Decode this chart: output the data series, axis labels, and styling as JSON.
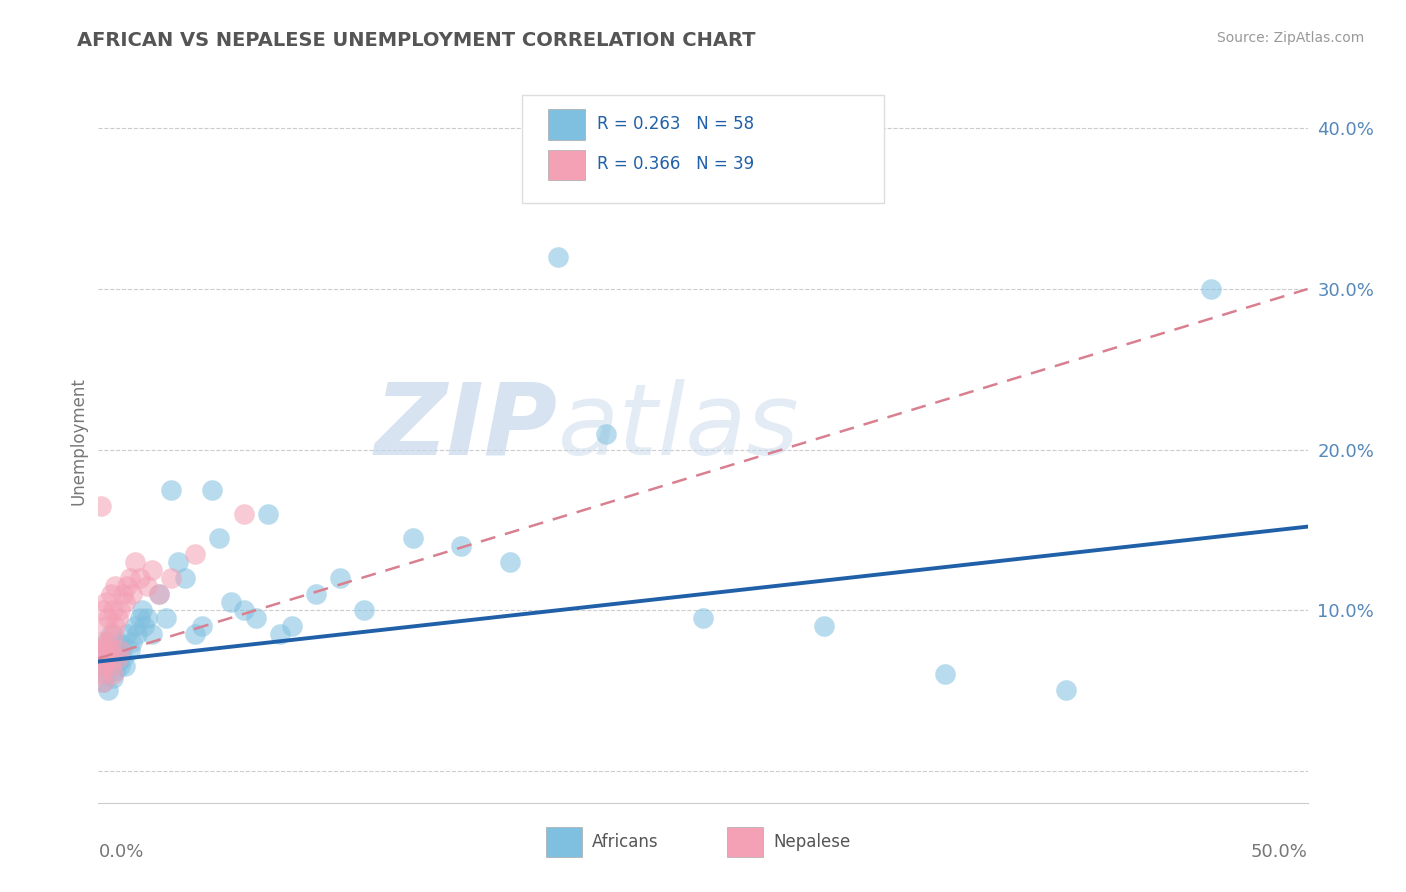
{
  "title": "AFRICAN VS NEPALESE UNEMPLOYMENT CORRELATION CHART",
  "source": "Source: ZipAtlas.com",
  "ylabel": "Unemployment",
  "xlim": [
    0,
    0.5
  ],
  "ylim": [
    -0.02,
    0.43
  ],
  "yticks": [
    0.0,
    0.1,
    0.2,
    0.3,
    0.4
  ],
  "ytick_labels": [
    "",
    "10.0%",
    "20.0%",
    "30.0%",
    "40.0%"
  ],
  "legend_label1": "Africans",
  "legend_label2": "Nepalese",
  "blue_color": "#7fbfdf",
  "pink_color": "#f4a0b5",
  "blue_line_color": "#2060a8",
  "pink_line_color": "#d88090",
  "watermark_zip": "ZIP",
  "watermark_atlas": "atlas",
  "africans_x": [
    0.001,
    0.002,
    0.002,
    0.003,
    0.003,
    0.004,
    0.004,
    0.005,
    0.005,
    0.006,
    0.006,
    0.007,
    0.007,
    0.008,
    0.008,
    0.009,
    0.009,
    0.01,
    0.01,
    0.011,
    0.012,
    0.013,
    0.014,
    0.015,
    0.016,
    0.017,
    0.018,
    0.019,
    0.02,
    0.022,
    0.025,
    0.028,
    0.03,
    0.033,
    0.036,
    0.04,
    0.043,
    0.047,
    0.05,
    0.055,
    0.06,
    0.065,
    0.07,
    0.075,
    0.08,
    0.09,
    0.1,
    0.11,
    0.13,
    0.15,
    0.17,
    0.19,
    0.21,
    0.25,
    0.3,
    0.35,
    0.4,
    0.46
  ],
  "africans_y": [
    0.065,
    0.072,
    0.055,
    0.08,
    0.06,
    0.075,
    0.05,
    0.07,
    0.085,
    0.068,
    0.058,
    0.075,
    0.062,
    0.08,
    0.068,
    0.072,
    0.065,
    0.078,
    0.07,
    0.065,
    0.085,
    0.075,
    0.08,
    0.09,
    0.085,
    0.095,
    0.1,
    0.09,
    0.095,
    0.085,
    0.11,
    0.095,
    0.175,
    0.13,
    0.12,
    0.085,
    0.09,
    0.175,
    0.145,
    0.105,
    0.1,
    0.095,
    0.16,
    0.085,
    0.09,
    0.11,
    0.12,
    0.1,
    0.145,
    0.14,
    0.13,
    0.32,
    0.21,
    0.095,
    0.09,
    0.06,
    0.05,
    0.3
  ],
  "nepalese_x": [
    0.001,
    0.001,
    0.001,
    0.002,
    0.002,
    0.002,
    0.002,
    0.003,
    0.003,
    0.003,
    0.003,
    0.004,
    0.004,
    0.004,
    0.005,
    0.005,
    0.005,
    0.006,
    0.006,
    0.006,
    0.007,
    0.007,
    0.008,
    0.008,
    0.009,
    0.009,
    0.01,
    0.011,
    0.012,
    0.013,
    0.014,
    0.015,
    0.017,
    0.02,
    0.022,
    0.025,
    0.03,
    0.04,
    0.06
  ],
  "nepalese_y": [
    0.06,
    0.072,
    0.08,
    0.065,
    0.055,
    0.075,
    0.1,
    0.068,
    0.078,
    0.09,
    0.105,
    0.07,
    0.08,
    0.095,
    0.065,
    0.075,
    0.11,
    0.06,
    0.085,
    0.1,
    0.09,
    0.115,
    0.07,
    0.095,
    0.075,
    0.1,
    0.11,
    0.105,
    0.115,
    0.12,
    0.11,
    0.13,
    0.12,
    0.115,
    0.125,
    0.11,
    0.12,
    0.135,
    0.16
  ],
  "blue_trendline": [
    0.068,
    0.152
  ],
  "pink_trendline": [
    0.07,
    0.3
  ],
  "pink_trendline_xrange": [
    0.0,
    0.5
  ]
}
